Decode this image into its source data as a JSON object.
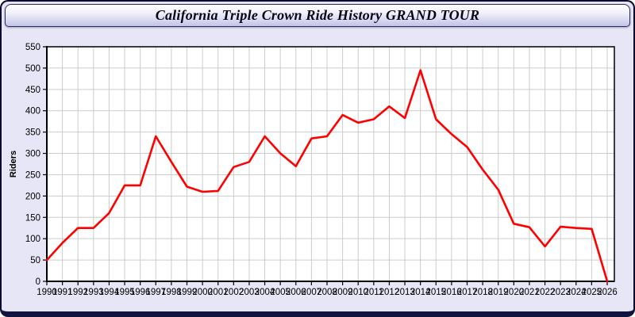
{
  "header": {
    "title": "California Triple Crown Ride History GRAND TOUR"
  },
  "chart_data": {
    "type": "line",
    "title": "California Triple Crown Ride History GRAND TOUR",
    "xlabel": "",
    "ylabel": "Riders",
    "ylim": [
      0,
      550
    ],
    "ytick_step": 50,
    "grid": true,
    "legend": "none",
    "x": [
      1990,
      1991,
      1992,
      1993,
      1994,
      1995,
      1996,
      1997,
      1998,
      1999,
      2000,
      2001,
      2002,
      2003,
      2004,
      2005,
      2006,
      2007,
      2008,
      2009,
      2010,
      2011,
      2012,
      2013,
      2014,
      2015,
      2016,
      2017,
      2018,
      2019,
      2020,
      2021,
      2022,
      2023,
      2024,
      2025,
      2026
    ],
    "series": [
      {
        "name": "Riders",
        "values": [
          50,
          90,
          125,
          125,
          160,
          225,
          225,
          340,
          280,
          222,
          210,
          212,
          268,
          280,
          340,
          300,
          270,
          335,
          340,
          390,
          372,
          380,
          410,
          383,
          495,
          380,
          345,
          315,
          262,
          215,
          135,
          127,
          82,
          128,
          125,
          123,
          0
        ]
      }
    ]
  },
  "colors": {
    "line": "#ff0000",
    "grid": "#cccccc",
    "axis": "#000000",
    "plot_bg": "#ffffff",
    "panel_bg": "#e6e6f7",
    "tick_label": "#000000"
  }
}
